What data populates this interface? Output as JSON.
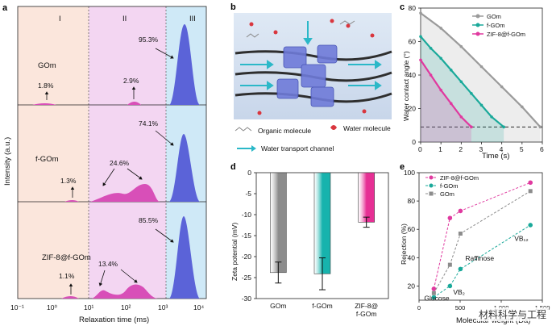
{
  "panel_a": {
    "label": "a",
    "ylabel": "Intensity (a.u.)",
    "xlabel": "Relaxation time (ms)",
    "regions": [
      "I",
      "II",
      "III"
    ],
    "ticks": [
      "10⁻¹",
      "10⁰",
      "10¹",
      "10²",
      "10³",
      "10⁴"
    ],
    "rows": [
      {
        "name": "GOm",
        "p1": "1.8%",
        "p2": "2.9%",
        "p3": "95.3%"
      },
      {
        "name": "f-GOm",
        "p1": "1.3%",
        "p2": "24.6%",
        "p3": "74.1%"
      },
      {
        "name": "ZIF-8@f-GOm",
        "p1": "1.1%",
        "p2": "13.4%",
        "p3": "85.5%"
      }
    ],
    "colors": {
      "region1": "#fbe6dc",
      "region2": "#f3d6f2",
      "region3": "#cfe9f7",
      "peak": "#5b63d8",
      "peak2": "#d84fb8"
    }
  },
  "panel_b": {
    "label": "b",
    "legend": [
      {
        "icon": "organic-molecule-icon",
        "text": "Organic molecule"
      },
      {
        "icon": "water-molecule-icon",
        "text": "Water molecule"
      },
      {
        "icon": "water-channel-arrow-icon",
        "text": "Water transport channel"
      }
    ]
  },
  "panel_c": {
    "label": "c",
    "ylabel": "Water contact angle (°)",
    "xlabel": "Time (s)",
    "legend": [
      "GOm",
      "f-GOm",
      "ZIF-8@f-GOm"
    ],
    "colors": [
      "#9a9a9a",
      "#1aa99a",
      "#e0399f"
    ]
  },
  "panel_d": {
    "label": "d",
    "ylabel": "Zeta potential (mV)",
    "ticks": [
      "0",
      "-5",
      "-10",
      "-15",
      "-20",
      "-25",
      "-30"
    ],
    "categories": [
      "GOm",
      "f-GOm",
      "ZIF-8@\nf-GOm"
    ]
  },
  "panel_e": {
    "label": "e",
    "ylabel": "Rejection (%)",
    "xlabel": "Molecular weight (Da)",
    "legend": [
      "ZIF-8@f-GOm",
      "f-GOm",
      "GOm"
    ],
    "annotations": [
      "Glucose",
      "VB₂",
      "Raffinose",
      "VB₁₂"
    ]
  },
  "watermark": "材料科学与工程",
  "chart_data": [
    {
      "type": "area",
      "panel": "c",
      "title": "",
      "xlabel": "Time (s)",
      "ylabel": "Water contact angle (°)",
      "xlim": [
        0,
        6
      ],
      "ylim": [
        0,
        80
      ],
      "xticks": [
        0,
        1,
        2,
        3,
        4,
        5,
        6
      ],
      "yticks": [
        0,
        20,
        40,
        60,
        80
      ],
      "reference_line": 9,
      "series": [
        {
          "name": "GOm",
          "color": "#9a9a9a",
          "x": [
            0,
            1,
            2,
            3,
            4,
            5,
            5.9
          ],
          "y": [
            77,
            68,
            57,
            45,
            33,
            21,
            9
          ]
        },
        {
          "name": "f-GOm",
          "color": "#1aa99a",
          "x": [
            0,
            0.5,
            1,
            1.5,
            2,
            2.5,
            3,
            3.5,
            4.1
          ],
          "y": [
            63,
            56,
            50,
            43,
            36,
            29,
            22,
            15,
            9
          ]
        },
        {
          "name": "ZIF-8@f-GOm",
          "color": "#e0399f",
          "x": [
            0,
            0.5,
            1,
            1.5,
            2,
            2.5
          ],
          "y": [
            49,
            40,
            31,
            23,
            15,
            9
          ]
        }
      ]
    },
    {
      "type": "bar",
      "panel": "d",
      "title": "",
      "xlabel": "",
      "ylabel": "Zeta potential (mV)",
      "ylim": [
        -30,
        0
      ],
      "categories": [
        "GOm",
        "f-GOm",
        "ZIF-8@f-GOm"
      ],
      "values": [
        -23.8,
        -24.1,
        -11.8
      ],
      "errors": [
        2.5,
        3.8,
        1.2
      ],
      "colors": [
        "#8c8c8c",
        "#17b3ad",
        "#e62f94"
      ]
    },
    {
      "type": "line",
      "panel": "e",
      "title": "",
      "xlabel": "Molecular weight (Da)",
      "ylabel": "Rejection (%)",
      "xlim": [
        0,
        1500
      ],
      "ylim": [
        10,
        100
      ],
      "xticks": [
        0,
        500,
        1000,
        1500
      ],
      "yticks": [
        20,
        40,
        60,
        80,
        100
      ],
      "x": [
        180,
        376,
        504,
        1355
      ],
      "series": [
        {
          "name": "ZIF-8@f-GOm",
          "color": "#e0399f",
          "values": [
            18,
            68,
            73,
            93
          ]
        },
        {
          "name": "f-GOm",
          "color": "#1aa99a",
          "values": [
            12,
            20,
            32,
            63
          ]
        },
        {
          "name": "GOm",
          "color": "#8c8c8c",
          "values": [
            15,
            35,
            57,
            87
          ]
        }
      ]
    }
  ]
}
